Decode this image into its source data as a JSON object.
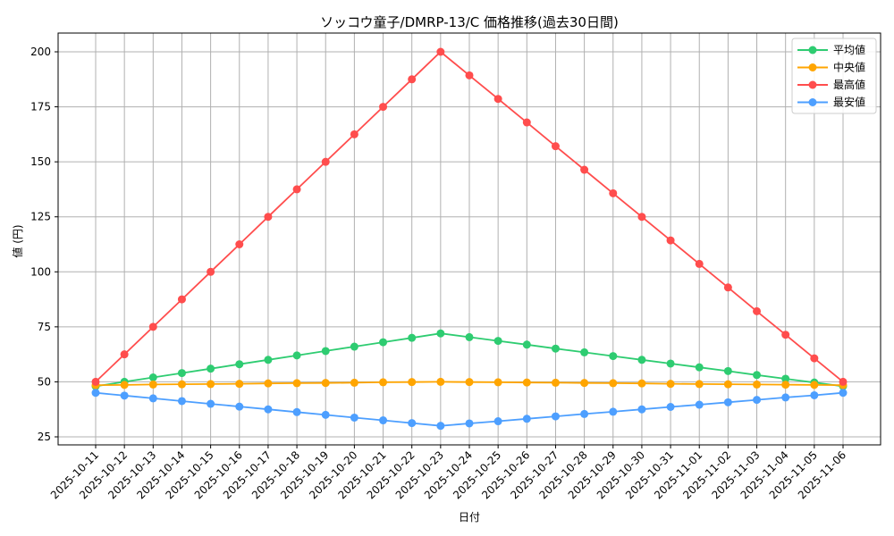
{
  "chart_data": {
    "type": "line",
    "title": "ソッコウ童子/DMRP-13/C 価格推移(過去30日間)",
    "xlabel": "日付",
    "ylabel": "値 (円)",
    "ylim": [
      22,
      208
    ],
    "yticks": [
      25,
      50,
      75,
      100,
      125,
      150,
      175,
      200
    ],
    "grid": true,
    "legend_position": "upper right",
    "categories": [
      "2025-10-11",
      "2025-10-12",
      "2025-10-13",
      "2025-10-14",
      "2025-10-15",
      "2025-10-16",
      "2025-10-17",
      "2025-10-18",
      "2025-10-19",
      "2025-10-20",
      "2025-10-21",
      "2025-10-22",
      "2025-10-23",
      "2025-10-24",
      "2025-10-25",
      "2025-10-26",
      "2025-10-27",
      "2025-10-28",
      "2025-10-29",
      "2025-10-30",
      "2025-10-31",
      "2025-11-01",
      "2025-11-02",
      "2025-11-03",
      "2025-11-04",
      "2025-11-05",
      "2025-11-06"
    ],
    "series": [
      {
        "name": "平均値",
        "color": "#2ecc71",
        "values": [
          48,
          50,
          52,
          54,
          56,
          58,
          60,
          62,
          64,
          66,
          68,
          70,
          72,
          70.3,
          68.6,
          66.9,
          65.1,
          63.4,
          61.7,
          60,
          58.3,
          56.6,
          54.9,
          53.1,
          51.4,
          49.7,
          48
        ]
      },
      {
        "name": "中央値",
        "color": "#ffa500",
        "values": [
          48.5,
          48.6,
          48.8,
          48.9,
          49,
          49.1,
          49.3,
          49.4,
          49.5,
          49.6,
          49.8,
          49.9,
          50,
          49.9,
          49.8,
          49.7,
          49.6,
          49.5,
          49.4,
          49.3,
          49.1,
          49,
          48.9,
          48.8,
          48.7,
          48.6,
          48.5
        ]
      },
      {
        "name": "最高値",
        "color": "#ff4d4d",
        "values": [
          50,
          62.5,
          75,
          87.5,
          100,
          112.5,
          125,
          137.5,
          150,
          162.5,
          175,
          187.5,
          200,
          189.3,
          178.6,
          167.9,
          157.1,
          146.4,
          135.7,
          125,
          114.3,
          103.6,
          92.9,
          82.1,
          71.4,
          60.7,
          50
        ]
      },
      {
        "name": "最安値",
        "color": "#4d9fff",
        "values": [
          45,
          43.75,
          42.5,
          41.25,
          40,
          38.75,
          37.5,
          36.25,
          35,
          33.75,
          32.5,
          31.25,
          30,
          31.1,
          32.1,
          33.2,
          34.3,
          35.4,
          36.4,
          37.5,
          38.6,
          39.6,
          40.7,
          41.8,
          42.9,
          43.9,
          45
        ]
      }
    ]
  }
}
